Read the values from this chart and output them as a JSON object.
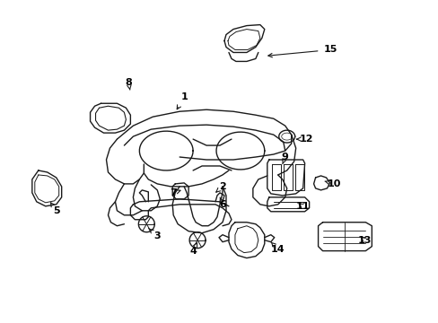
{
  "bg_color": "#ffffff",
  "line_color": "#1a1a1a",
  "lw": 1.0,
  "fig_w": 4.89,
  "fig_h": 3.6,
  "dpi": 100,
  "label_positions": [
    [
      "1",
      205,
      108,
      195,
      125
    ],
    [
      "2",
      248,
      208,
      240,
      215
    ],
    [
      "3",
      175,
      263,
      163,
      253
    ],
    [
      "4",
      215,
      280,
      220,
      270
    ],
    [
      "5",
      62,
      235,
      55,
      225
    ],
    [
      "6",
      248,
      228,
      245,
      220
    ],
    [
      "7",
      193,
      215,
      202,
      212
    ],
    [
      "8",
      143,
      92,
      145,
      103
    ],
    [
      "9",
      318,
      175,
      315,
      183
    ],
    [
      "10",
      373,
      205,
      362,
      202
    ],
    [
      "11",
      338,
      230,
      330,
      225
    ],
    [
      "12",
      342,
      155,
      330,
      155
    ],
    [
      "13",
      407,
      268,
      400,
      262
    ],
    [
      "14",
      310,
      278,
      302,
      270
    ],
    [
      "15",
      369,
      55,
      295,
      62
    ]
  ]
}
